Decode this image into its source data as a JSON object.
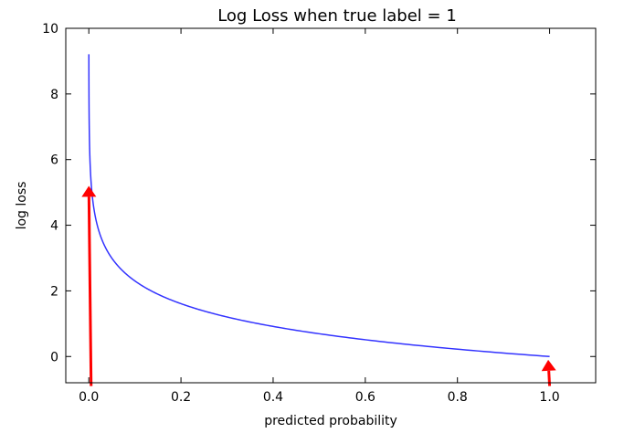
{
  "chart_data": {
    "type": "line",
    "title": "Log Loss when true label = 1",
    "xlabel": "predicted probability",
    "ylabel": "log loss",
    "xlim": [
      -0.05,
      1.1
    ],
    "ylim": [
      -0.8,
      10
    ],
    "xticks": [
      0.0,
      0.2,
      0.4,
      0.6,
      0.8,
      1.0
    ],
    "xtick_labels": [
      "0.0",
      "0.2",
      "0.4",
      "0.6",
      "0.8",
      "1.0"
    ],
    "yticks": [
      0,
      2,
      4,
      6,
      8,
      10
    ],
    "ytick_labels": [
      "0",
      "2",
      "4",
      "6",
      "8",
      "10"
    ],
    "grid": false,
    "series": [
      {
        "function": "-ln(x)",
        "x_range": [
          0.0001,
          1.0
        ],
        "color": "#3333ff"
      }
    ],
    "annotations": [
      {
        "type": "arrow",
        "from": [
          0.005,
          -0.9
        ],
        "to": [
          0.0,
          5.2
        ],
        "color": "#ff0000"
      },
      {
        "type": "arrow",
        "from": [
          1.0,
          -0.9
        ],
        "to": [
          0.997,
          -0.1
        ],
        "color": "#ff0000"
      }
    ]
  }
}
